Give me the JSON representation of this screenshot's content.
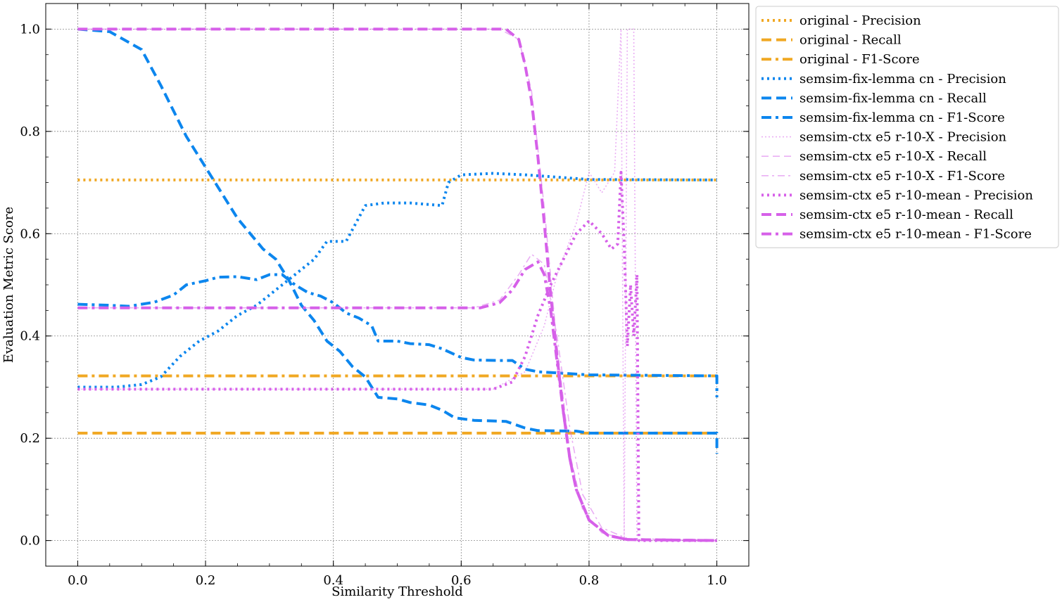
{
  "chart_data": {
    "type": "line",
    "title": "",
    "xlabel": "Similarity Threshold",
    "ylabel": "Evaluation Metric Score",
    "xlim": [
      -0.05,
      1.05
    ],
    "ylim": [
      -0.05,
      1.05
    ],
    "xticks": [
      0.0,
      0.2,
      0.4,
      0.6,
      0.8,
      1.0
    ],
    "xtick_labels": [
      "0.0",
      "0.2",
      "0.4",
      "0.6",
      "0.8",
      "1.0"
    ],
    "yticks": [
      0.0,
      0.2,
      0.4,
      0.6,
      0.8,
      1.0
    ],
    "ytick_labels": [
      "0.0",
      "0.2",
      "0.4",
      "0.6",
      "0.8",
      "1.0"
    ],
    "grid": true,
    "legend_position": "outside-top-right",
    "colors": {
      "orange": "#f0a823",
      "blue": "#0c86ee",
      "magenta": "#d660e9",
      "grid": "#8a8a8a"
    },
    "series": [
      {
        "name": "original - Precision",
        "color": "#f0a823",
        "style": "dotted",
        "weight": "thick",
        "opacity": 1,
        "points": [
          [
            0.0,
            0.705
          ],
          [
            1.0,
            0.705
          ]
        ]
      },
      {
        "name": "original - Recall",
        "color": "#f0a823",
        "style": "dashed",
        "weight": "thick",
        "opacity": 1,
        "points": [
          [
            0.0,
            0.21
          ],
          [
            1.0,
            0.21
          ]
        ]
      },
      {
        "name": "original - F1-Score",
        "color": "#f0a823",
        "style": "dashdot",
        "weight": "thick",
        "opacity": 1,
        "points": [
          [
            0.0,
            0.322
          ],
          [
            1.0,
            0.322
          ]
        ]
      },
      {
        "name": "semsim-fix-lemma cn - Precision",
        "color": "#0c86ee",
        "style": "dotted",
        "weight": "thick",
        "opacity": 1,
        "points": [
          [
            0.0,
            0.3
          ],
          [
            0.06,
            0.3
          ],
          [
            0.1,
            0.305
          ],
          [
            0.13,
            0.32
          ],
          [
            0.16,
            0.36
          ],
          [
            0.19,
            0.39
          ],
          [
            0.22,
            0.41
          ],
          [
            0.25,
            0.44
          ],
          [
            0.28,
            0.46
          ],
          [
            0.31,
            0.49
          ],
          [
            0.34,
            0.52
          ],
          [
            0.37,
            0.55
          ],
          [
            0.39,
            0.585
          ],
          [
            0.42,
            0.585
          ],
          [
            0.45,
            0.655
          ],
          [
            0.48,
            0.66
          ],
          [
            0.52,
            0.66
          ],
          [
            0.57,
            0.655
          ],
          [
            0.58,
            0.7
          ],
          [
            0.6,
            0.715
          ],
          [
            0.65,
            0.718
          ],
          [
            0.7,
            0.715
          ],
          [
            0.8,
            0.706
          ],
          [
            1.0,
            0.705
          ]
        ]
      },
      {
        "name": "semsim-fix-lemma cn - Recall",
        "color": "#0c86ee",
        "style": "dashed",
        "weight": "thick",
        "opacity": 1,
        "points": [
          [
            0.0,
            1.0
          ],
          [
            0.05,
            0.995
          ],
          [
            0.1,
            0.96
          ],
          [
            0.13,
            0.89
          ],
          [
            0.15,
            0.84
          ],
          [
            0.17,
            0.79
          ],
          [
            0.2,
            0.73
          ],
          [
            0.23,
            0.67
          ],
          [
            0.25,
            0.63
          ],
          [
            0.27,
            0.6
          ],
          [
            0.29,
            0.57
          ],
          [
            0.31,
            0.55
          ],
          [
            0.33,
            0.51
          ],
          [
            0.35,
            0.46
          ],
          [
            0.37,
            0.43
          ],
          [
            0.39,
            0.39
          ],
          [
            0.41,
            0.37
          ],
          [
            0.43,
            0.34
          ],
          [
            0.45,
            0.32
          ],
          [
            0.47,
            0.28
          ],
          [
            0.5,
            0.277
          ],
          [
            0.52,
            0.27
          ],
          [
            0.55,
            0.265
          ],
          [
            0.57,
            0.255
          ],
          [
            0.59,
            0.24
          ],
          [
            0.62,
            0.235
          ],
          [
            0.67,
            0.233
          ],
          [
            0.7,
            0.22
          ],
          [
            0.72,
            0.215
          ],
          [
            0.78,
            0.214
          ],
          [
            0.8,
            0.21
          ],
          [
            1.0,
            0.21
          ],
          [
            1.0,
            0.17
          ]
        ]
      },
      {
        "name": "semsim-fix-lemma cn - F1-Score",
        "color": "#0c86ee",
        "style": "dashdot",
        "weight": "thick",
        "opacity": 1,
        "points": [
          [
            0.0,
            0.462
          ],
          [
            0.05,
            0.46
          ],
          [
            0.08,
            0.458
          ],
          [
            0.12,
            0.466
          ],
          [
            0.15,
            0.48
          ],
          [
            0.17,
            0.5
          ],
          [
            0.2,
            0.508
          ],
          [
            0.22,
            0.515
          ],
          [
            0.25,
            0.516
          ],
          [
            0.28,
            0.51
          ],
          [
            0.3,
            0.52
          ],
          [
            0.32,
            0.52
          ],
          [
            0.34,
            0.5
          ],
          [
            0.36,
            0.485
          ],
          [
            0.38,
            0.478
          ],
          [
            0.4,
            0.465
          ],
          [
            0.42,
            0.445
          ],
          [
            0.44,
            0.435
          ],
          [
            0.46,
            0.42
          ],
          [
            0.47,
            0.39
          ],
          [
            0.5,
            0.39
          ],
          [
            0.52,
            0.385
          ],
          [
            0.55,
            0.383
          ],
          [
            0.57,
            0.375
          ],
          [
            0.6,
            0.358
          ],
          [
            0.62,
            0.353
          ],
          [
            0.66,
            0.352
          ],
          [
            0.68,
            0.352
          ],
          [
            0.7,
            0.335
          ],
          [
            0.72,
            0.33
          ],
          [
            0.8,
            0.324
          ],
          [
            1.0,
            0.322
          ],
          [
            1.0,
            0.28
          ]
        ]
      },
      {
        "name": "semsim-ctx e5 r-10-X - Precision",
        "color": "#d660e9",
        "style": "dotted",
        "weight": "thin",
        "opacity": 0.5,
        "points": [
          [
            0.0,
            0.296
          ],
          [
            0.65,
            0.296
          ],
          [
            0.7,
            0.33
          ],
          [
            0.73,
            0.42
          ],
          [
            0.75,
            0.52
          ],
          [
            0.78,
            0.62
          ],
          [
            0.8,
            0.72
          ],
          [
            0.82,
            0.68
          ],
          [
            0.84,
            0.72
          ],
          [
            0.85,
            1.0
          ],
          [
            0.855,
            0.0
          ],
          [
            0.86,
            1.0
          ],
          [
            0.87,
            1.0
          ],
          [
            0.875,
            0.0
          ],
          [
            1.0,
            0.0
          ]
        ]
      },
      {
        "name": "semsim-ctx e5 r-10-X - Recall",
        "color": "#d660e9",
        "style": "dashed",
        "weight": "thin",
        "opacity": 0.5,
        "points": [
          [
            0.0,
            1.0
          ],
          [
            0.66,
            1.0
          ],
          [
            0.69,
            0.98
          ],
          [
            0.71,
            0.88
          ],
          [
            0.73,
            0.65
          ],
          [
            0.75,
            0.38
          ],
          [
            0.77,
            0.17
          ],
          [
            0.79,
            0.06
          ],
          [
            0.82,
            0.015
          ],
          [
            0.86,
            0.002
          ],
          [
            1.0,
            0.0
          ]
        ]
      },
      {
        "name": "semsim-ctx e5 r-10-X - F1-Score",
        "color": "#d660e9",
        "style": "dashdot",
        "weight": "thin",
        "opacity": 0.5,
        "points": [
          [
            0.0,
            0.455
          ],
          [
            0.62,
            0.455
          ],
          [
            0.66,
            0.47
          ],
          [
            0.69,
            0.52
          ],
          [
            0.71,
            0.56
          ],
          [
            0.73,
            0.54
          ],
          [
            0.75,
            0.4
          ],
          [
            0.77,
            0.22
          ],
          [
            0.79,
            0.09
          ],
          [
            0.82,
            0.025
          ],
          [
            0.86,
            0.004
          ],
          [
            1.0,
            0.0
          ]
        ]
      },
      {
        "name": "semsim-ctx e5 r-10-mean - Precision",
        "color": "#d660e9",
        "style": "dotted",
        "weight": "thick",
        "opacity": 1,
        "points": [
          [
            0.0,
            0.296
          ],
          [
            0.65,
            0.296
          ],
          [
            0.68,
            0.31
          ],
          [
            0.7,
            0.36
          ],
          [
            0.72,
            0.44
          ],
          [
            0.74,
            0.5
          ],
          [
            0.76,
            0.55
          ],
          [
            0.78,
            0.6
          ],
          [
            0.8,
            0.625
          ],
          [
            0.82,
            0.6
          ],
          [
            0.835,
            0.57
          ],
          [
            0.845,
            0.58
          ],
          [
            0.85,
            0.72
          ],
          [
            0.855,
            0.58
          ],
          [
            0.86,
            0.38
          ],
          [
            0.865,
            0.5
          ],
          [
            0.87,
            0.4
          ],
          [
            0.875,
            0.52
          ],
          [
            0.878,
            0.0
          ],
          [
            1.0,
            0.0
          ]
        ]
      },
      {
        "name": "semsim-ctx e5 r-10-mean - Recall",
        "color": "#d660e9",
        "style": "dashed",
        "weight": "thick",
        "opacity": 1,
        "points": [
          [
            0.0,
            1.0
          ],
          [
            0.67,
            1.0
          ],
          [
            0.69,
            0.98
          ],
          [
            0.7,
            0.93
          ],
          [
            0.71,
            0.86
          ],
          [
            0.72,
            0.75
          ],
          [
            0.73,
            0.62
          ],
          [
            0.74,
            0.48
          ],
          [
            0.75,
            0.36
          ],
          [
            0.76,
            0.25
          ],
          [
            0.77,
            0.16
          ],
          [
            0.78,
            0.1
          ],
          [
            0.8,
            0.04
          ],
          [
            0.83,
            0.01
          ],
          [
            0.86,
            0.002
          ],
          [
            1.0,
            0.0
          ]
        ]
      },
      {
        "name": "semsim-ctx e5 r-10-mean - F1-Score",
        "color": "#d660e9",
        "style": "dashdot",
        "weight": "thick",
        "opacity": 1,
        "points": [
          [
            0.0,
            0.455
          ],
          [
            0.63,
            0.455
          ],
          [
            0.66,
            0.465
          ],
          [
            0.68,
            0.49
          ],
          [
            0.7,
            0.53
          ],
          [
            0.72,
            0.545
          ],
          [
            0.73,
            0.52
          ],
          [
            0.74,
            0.45
          ],
          [
            0.75,
            0.35
          ],
          [
            0.76,
            0.25
          ],
          [
            0.77,
            0.16
          ],
          [
            0.78,
            0.1
          ],
          [
            0.8,
            0.04
          ],
          [
            0.83,
            0.01
          ],
          [
            0.86,
            0.002
          ],
          [
            1.0,
            0.0
          ]
        ]
      }
    ]
  }
}
